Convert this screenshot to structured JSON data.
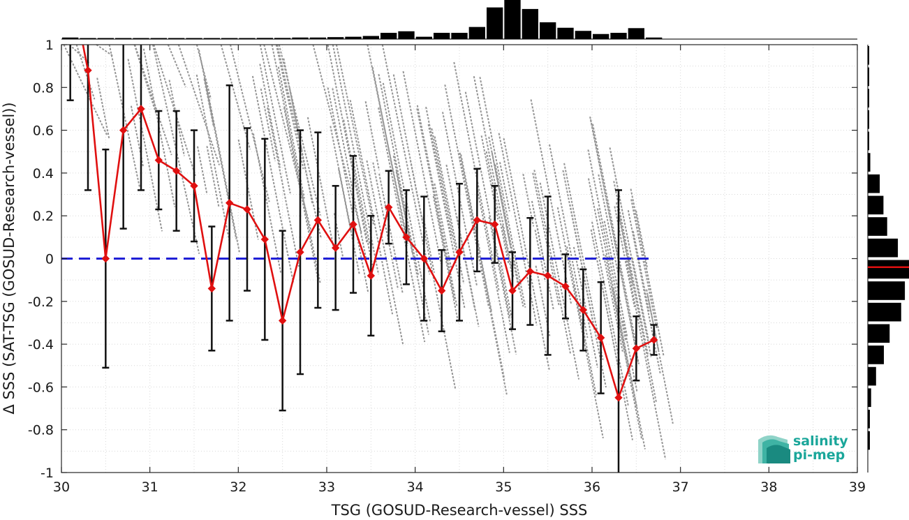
{
  "chart_data": {
    "type": "scatter",
    "xlabel": "TSG (GOSUD-Research-vessel) SSS",
    "ylabel": "Δ SSS (SAT-TSG (GOSUD-Research-vessel))",
    "xlim": [
      30,
      39
    ],
    "ylim": [
      -1,
      1
    ],
    "x_ticks": [
      "30",
      "31",
      "32",
      "33",
      "34",
      "35",
      "36",
      "37",
      "38",
      "39"
    ],
    "y_ticks": [
      "1",
      "0.8",
      "0.6",
      "0.4",
      "0.2",
      "0",
      "-0.2",
      "-0.4",
      "-0.6",
      "-0.8",
      "-1"
    ],
    "grid": true,
    "zero_line": {
      "y": 0,
      "style": "dashed",
      "color": "#1f1fd6"
    },
    "binned_mean": {
      "color": "#e01010",
      "x": [
        30.1,
        30.3,
        30.5,
        30.7,
        30.9,
        31.1,
        31.3,
        31.5,
        31.7,
        31.9,
        32.1,
        32.3,
        32.5,
        32.7,
        32.9,
        33.1,
        33.3,
        33.5,
        33.7,
        33.9,
        34.1,
        34.3,
        34.5,
        34.7,
        34.9,
        35.1,
        35.3,
        35.5,
        35.7,
        35.9,
        36.1,
        36.3,
        36.5,
        36.7
      ],
      "mean": [
        1.3,
        0.88,
        0.0,
        0.6,
        0.7,
        0.46,
        0.41,
        0.34,
        -0.14,
        0.26,
        0.23,
        0.09,
        -0.29,
        0.03,
        0.18,
        0.05,
        0.16,
        -0.08,
        0.24,
        0.1,
        0.0,
        -0.15,
        0.03,
        0.18,
        0.16,
        -0.15,
        -0.06,
        -0.08,
        -0.13,
        -0.24,
        -0.37,
        -0.65,
        -0.42,
        -0.38
      ],
      "std": [
        0.56,
        0.56,
        0.51,
        0.46,
        0.38,
        0.23,
        0.28,
        0.26,
        0.29,
        0.55,
        0.38,
        0.47,
        0.42,
        0.57,
        0.41,
        0.29,
        0.32,
        0.28,
        0.17,
        0.22,
        0.29,
        0.19,
        0.32,
        0.24,
        0.18,
        0.18,
        0.25,
        0.37,
        0.15,
        0.19,
        0.26,
        0.97,
        0.15,
        0.07
      ]
    },
    "scatter_color": "#8a8a8a",
    "x_histogram": {
      "x": [
        30.1,
        30.3,
        30.5,
        30.7,
        30.9,
        31.1,
        31.3,
        31.5,
        31.7,
        31.9,
        32.1,
        32.3,
        32.5,
        32.7,
        32.9,
        33.1,
        33.3,
        33.5,
        33.7,
        33.9,
        34.1,
        34.3,
        34.5,
        34.7,
        34.9,
        35.1,
        35.3,
        35.5,
        35.7,
        35.9,
        36.1,
        36.3,
        36.5,
        36.7
      ],
      "counts": [
        0.04,
        0.02,
        0.02,
        0.02,
        0.02,
        0.02,
        0.02,
        0.02,
        0.02,
        0.02,
        0.02,
        0.03,
        0.03,
        0.04,
        0.04,
        0.05,
        0.06,
        0.08,
        0.16,
        0.2,
        0.06,
        0.16,
        0.16,
        0.31,
        0.81,
        1.0,
        0.77,
        0.43,
        0.29,
        0.21,
        0.13,
        0.16,
        0.28,
        0.04
      ]
    },
    "y_histogram": {
      "y": [
        0.95,
        0.85,
        0.75,
        0.65,
        0.55,
        0.45,
        0.35,
        0.25,
        0.15,
        0.05,
        -0.05,
        -0.15,
        -0.25,
        -0.35,
        -0.45,
        -0.55,
        -0.65,
        -0.75,
        -0.85
      ],
      "counts": [
        0.01,
        0.01,
        0.02,
        0.01,
        0.01,
        0.06,
        0.29,
        0.38,
        0.47,
        0.73,
        1.0,
        0.9,
        0.81,
        0.53,
        0.39,
        0.2,
        0.08,
        0.05,
        0.05
      ],
      "median_line": -0.04,
      "median_color": "#e01010"
    }
  },
  "logo": {
    "line1": "salinity",
    "line2": "pi-mep",
    "color": "#1aa69a"
  }
}
